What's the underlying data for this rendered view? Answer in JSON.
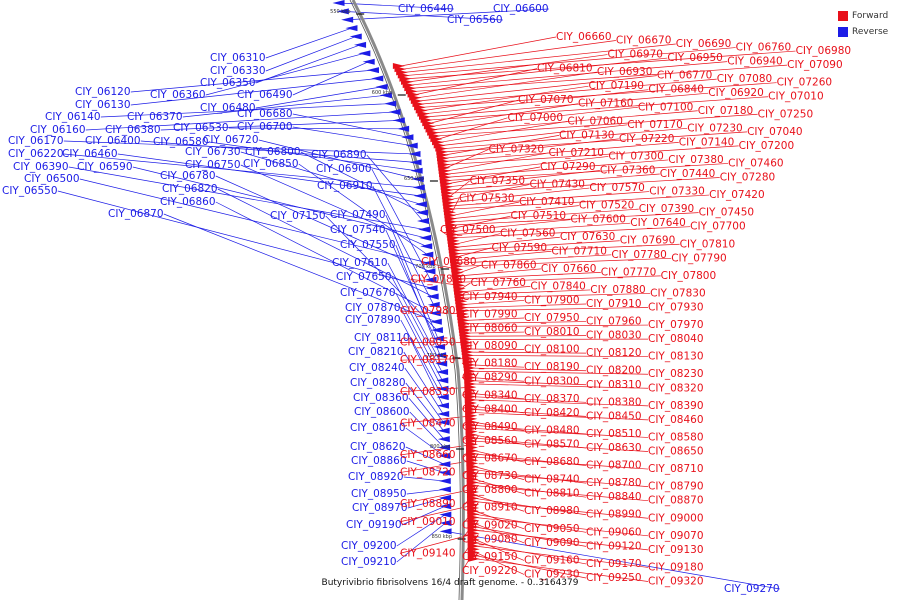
{
  "caption": "Butyrivibrio fibrisolvens 16/4 draft genome. - 0..3164379",
  "legend": [
    {
      "label": "Forward",
      "color": "#e8101a"
    },
    {
      "label": "Reverse",
      "color": "#1c1ce6"
    }
  ],
  "tick_labels": [
    "550 kbp",
    "600 kbp",
    "650 kbp",
    "700 kbp",
    "750 kbp",
    "800 kbp",
    "850 kbp"
  ],
  "reverse_genes": [
    "CIY_06440",
    "CIY_06560",
    "CIY_06600",
    "CIY_06310",
    "CIY_06330",
    "CIY_06350",
    "CIY_06360",
    "CIY_06490",
    "CIY_06120",
    "CIY_06130",
    "CIY_06480",
    "CIY_06370",
    "CIY_06140",
    "CIY_06160",
    "CIY_06380",
    "CIY_06530",
    "CIY_06680",
    "CIY_06700",
    "CIY_06170",
    "CIY_06400",
    "CIY_06580",
    "CIY_06720",
    "CIY_06220",
    "CIY_06460",
    "CIY_06730",
    "CIY_06800",
    "CIY_06890",
    "CIY_06390",
    "CIY_06590",
    "CIY_06750",
    "CIY_06850",
    "CIY_06500",
    "CIY_06780",
    "CIY_06900",
    "CIY_06550",
    "CIY_06820",
    "CIY_06910",
    "CIY_06860",
    "CIY_06870",
    "CIY_07150",
    "CIY_07490",
    "CIY_07540",
    "CIY_07550",
    "CIY_07610",
    "CIY_07650",
    "CIY_07670",
    "CIY_07870",
    "CIY_07890",
    "CIY_08110",
    "CIY_08210",
    "CIY_08240",
    "CIY_08280",
    "CIY_08360",
    "CIY_08600",
    "CIY_08610",
    "CIY_08620",
    "CIY_08860",
    "CIY_08920",
    "CIY_08950",
    "CIY_08970",
    "CIY_09190",
    "CIY_09200",
    "CIY_09210",
    "CIY_09270"
  ],
  "forward_genes": [
    "CIY_06660",
    "CIY_06670",
    "CIY_06690",
    "CIY_06760",
    "CIY_06980",
    "CIY_06970",
    "CIY_06950",
    "CIY_06940",
    "CIY_07090",
    "CIY_06810",
    "CIY_06930",
    "CIY_06770",
    "CIY_07080",
    "CIY_07260",
    "CIY_07190",
    "CIY_06840",
    "CIY_06920",
    "CIY_07010",
    "CIY_07070",
    "CIY_07160",
    "CIY_07100",
    "CIY_07180",
    "CIY_07250",
    "CIY_07000",
    "CIY_07060",
    "CIY_07170",
    "CIY_07230",
    "CIY_07040",
    "CIY_07130",
    "CIY_07220",
    "CIY_07140",
    "CIY_07200",
    "CIY_07320",
    "CIY_07210",
    "CIY_07300",
    "CIY_07380",
    "CIY_07460",
    "CIY_07290",
    "CIY_07360",
    "CIY_07440",
    "CIY_07280",
    "CIY_07350",
    "CIY_07430",
    "CIY_07570",
    "CIY_07330",
    "CIY_07420",
    "CIY_07530",
    "CIY_07410",
    "CIY_07520",
    "CIY_07390",
    "CIY_07450",
    "CIY_07510",
    "CIY_07600",
    "CIY_07640",
    "CIY_07700",
    "CIY_07500",
    "CIY_07560",
    "CIY_07630",
    "CIY_07690",
    "CIY_07810",
    "CIY_07590",
    "CIY_07710",
    "CIY_07780",
    "CIY_07790",
    "CIY_07680",
    "CIY_07860",
    "CIY_07660",
    "CIY_07770",
    "CIY_07800",
    "CIY_07850",
    "CIY_07760",
    "CIY_07840",
    "CIY_07880",
    "CIY_07830",
    "CIY_07940",
    "CIY_07900",
    "CIY_07910",
    "CIY_07930",
    "CIY_07980",
    "CIY_07990",
    "CIY_07950",
    "CIY_07960",
    "CIY_07970",
    "CIY_08060",
    "CIY_08010",
    "CIY_08030",
    "CIY_08040",
    "CIY_08050",
    "CIY_08090",
    "CIY_08100",
    "CIY_08120",
    "CIY_08130",
    "CIY_08170",
    "CIY_08180",
    "CIY_08190",
    "CIY_08200",
    "CIY_08230",
    "CIY_08290",
    "CIY_08300",
    "CIY_08310",
    "CIY_08320",
    "CIY_08330",
    "CIY_08340",
    "CIY_08370",
    "CIY_08380",
    "CIY_08390",
    "CIY_08400",
    "CIY_08420",
    "CIY_08450",
    "CIY_08460",
    "CIY_08470",
    "CIY_08490",
    "CIY_08480",
    "CIY_08510",
    "CIY_08580",
    "CIY_08560",
    "CIY_08570",
    "CIY_08630",
    "CIY_08650",
    "CIY_08660",
    "CIY_08670",
    "CIY_08680",
    "CIY_08700",
    "CIY_08710",
    "CIY_08720",
    "CIY_08730",
    "CIY_08740",
    "CIY_08780",
    "CIY_08790",
    "CIY_08800",
    "CIY_08810",
    "CIY_08840",
    "CIY_08870",
    "CIY_08890",
    "CIY_08910",
    "CIY_08980",
    "CIY_08990",
    "CIY_09000",
    "CIY_09010",
    "CIY_09020",
    "CIY_09050",
    "CIY_09060",
    "CIY_09070",
    "CIY_09080",
    "CIY_09090",
    "CIY_09120",
    "CIY_09130",
    "CIY_09140",
    "CIY_09150",
    "CIY_09160",
    "CIY_09170",
    "CIY_09180",
    "CIY_09220",
    "CIY_09230",
    "CIY_09250",
    "CIY_09320"
  ]
}
